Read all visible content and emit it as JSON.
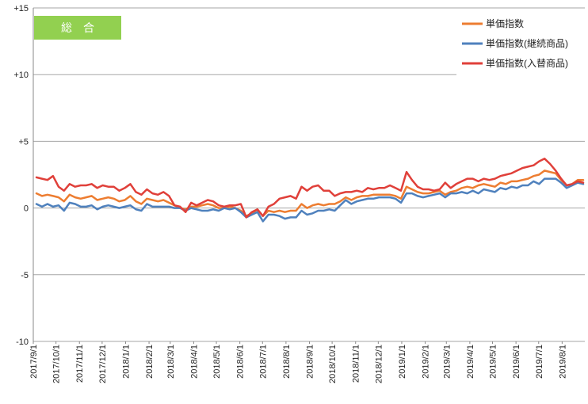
{
  "chart_data": {
    "type": "line",
    "badge": "総　合",
    "title": "",
    "xlabel": "",
    "ylabel": "",
    "ylim": [
      -10,
      15
    ],
    "y_ticks": [
      "+15",
      "+10",
      "+5",
      "0",
      "-5",
      "-10"
    ],
    "y_tick_values": [
      15,
      10,
      5,
      0,
      -5,
      -10
    ],
    "grid": "horizontal",
    "legend_position": "top-right",
    "x_tick_labels": [
      "2017/9/1",
      "2017/10/1",
      "2017/11/1",
      "2017/12/1",
      "2018/1/1",
      "2018/2/1",
      "2018/3/1",
      "2018/4/1",
      "2018/5/1",
      "2018/6/1",
      "2018/7/1",
      "2018/8/1",
      "2018/9/1",
      "2018/10/1",
      "2018/11/1",
      "2018/12/1",
      "2019/1/1",
      "2019/2/1",
      "2019/3/1",
      "2019/4/1",
      "2019/5/1",
      "2019/6/1",
      "2019/7/1",
      "2019/8/1"
    ],
    "x_range": [
      "2017/9/1",
      "2019/8/31"
    ],
    "colors": {
      "badge_bg": "#92d050",
      "badge_text": "#ffffff",
      "grid": "#a6a6a6",
      "axis": "#888888"
    },
    "series": [
      {
        "name": "単価指数",
        "color": "#ed7d31",
        "values": [
          1.1,
          0.9,
          1.0,
          0.9,
          0.8,
          0.5,
          1.0,
          0.8,
          0.7,
          0.8,
          0.9,
          0.6,
          0.7,
          0.8,
          0.7,
          0.5,
          0.6,
          0.9,
          0.5,
          0.3,
          0.7,
          0.6,
          0.5,
          0.6,
          0.4,
          0.2,
          0.0,
          -0.1,
          0.1,
          0.1,
          0.2,
          0.3,
          0.2,
          0.0,
          0.0,
          0.1,
          0.0,
          -0.2,
          -0.6,
          -0.4,
          -0.1,
          -0.6,
          -0.2,
          -0.3,
          -0.2,
          -0.3,
          -0.2,
          -0.2,
          0.3,
          0.0,
          0.2,
          0.3,
          0.2,
          0.3,
          0.3,
          0.5,
          0.8,
          0.6,
          0.8,
          0.9,
          0.9,
          1.0,
          1.0,
          1.0,
          1.0,
          0.9,
          0.7,
          1.6,
          1.4,
          1.2,
          1.1,
          1.1,
          1.2,
          1.3,
          1.0,
          1.2,
          1.3,
          1.5,
          1.6,
          1.5,
          1.7,
          1.8,
          1.7,
          1.6,
          1.9,
          1.8,
          2.0,
          2.0,
          2.1,
          2.2,
          2.4,
          2.5,
          2.8,
          2.7,
          2.6,
          2.1,
          1.7,
          1.8,
          2.1,
          2.1
        ]
      },
      {
        "name": "単価指数(継続商品)",
        "color": "#4f81bd",
        "values": [
          0.3,
          0.1,
          0.3,
          0.1,
          0.2,
          -0.2,
          0.4,
          0.3,
          0.1,
          0.1,
          0.2,
          -0.1,
          0.1,
          0.2,
          0.1,
          0.0,
          0.1,
          0.2,
          -0.1,
          -0.2,
          0.3,
          0.1,
          0.1,
          0.1,
          0.1,
          0.0,
          0.0,
          -0.2,
          0.0,
          -0.1,
          -0.2,
          -0.2,
          -0.1,
          -0.2,
          0.0,
          -0.1,
          0.0,
          -0.3,
          -0.7,
          -0.5,
          -0.3,
          -1.0,
          -0.5,
          -0.5,
          -0.6,
          -0.8,
          -0.7,
          -0.7,
          -0.2,
          -0.5,
          -0.4,
          -0.2,
          -0.2,
          -0.1,
          -0.2,
          0.2,
          0.6,
          0.3,
          0.5,
          0.6,
          0.7,
          0.7,
          0.8,
          0.8,
          0.8,
          0.7,
          0.4,
          1.1,
          1.1,
          0.9,
          0.8,
          0.9,
          1.0,
          1.1,
          0.8,
          1.1,
          1.1,
          1.2,
          1.1,
          1.3,
          1.1,
          1.4,
          1.3,
          1.2,
          1.5,
          1.4,
          1.6,
          1.5,
          1.7,
          1.7,
          2.0,
          1.8,
          2.2,
          2.2,
          2.2,
          1.9,
          1.5,
          1.7,
          1.9,
          1.8
        ]
      },
      {
        "name": "単価指数(入替商品)",
        "color": "#e0403a",
        "values": [
          2.3,
          2.2,
          2.1,
          2.4,
          1.6,
          1.3,
          1.8,
          1.6,
          1.7,
          1.7,
          1.8,
          1.5,
          1.7,
          1.6,
          1.6,
          1.3,
          1.5,
          1.8,
          1.2,
          1.0,
          1.4,
          1.1,
          1.0,
          1.2,
          0.9,
          0.2,
          0.1,
          -0.3,
          0.4,
          0.2,
          0.4,
          0.6,
          0.5,
          0.2,
          0.1,
          0.2,
          0.2,
          0.3,
          -0.7,
          -0.3,
          -0.1,
          -0.6,
          0.1,
          0.3,
          0.7,
          0.8,
          0.9,
          0.7,
          1.6,
          1.3,
          1.6,
          1.7,
          1.3,
          1.3,
          0.9,
          1.1,
          1.2,
          1.2,
          1.3,
          1.2,
          1.5,
          1.4,
          1.5,
          1.5,
          1.7,
          1.5,
          1.3,
          2.7,
          2.1,
          1.6,
          1.4,
          1.4,
          1.3,
          1.4,
          1.9,
          1.5,
          1.8,
          2.0,
          2.2,
          2.2,
          2.0,
          2.2,
          2.1,
          2.2,
          2.4,
          2.5,
          2.6,
          2.8,
          3.0,
          3.1,
          3.2,
          3.5,
          3.7,
          3.3,
          2.8,
          2.2,
          1.7,
          1.8,
          2.0,
          1.9
        ]
      }
    ]
  }
}
